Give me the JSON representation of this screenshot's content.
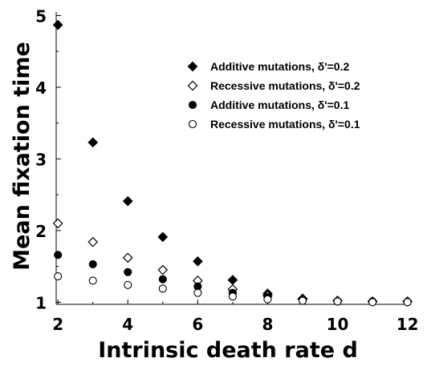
{
  "chart_data": {
    "type": "scatter",
    "xlabel": "Intrinsic death rate d",
    "ylabel": "Mean fixation time",
    "xlim": [
      1.95,
      12.1
    ],
    "ylim": [
      0.97,
      5.05
    ],
    "x_ticks": [
      "2",
      "4",
      "6",
      "8",
      "10",
      "12"
    ],
    "y_ticks": [
      "1",
      "2",
      "3",
      "4",
      "5"
    ],
    "grid": false,
    "legend_position": "top-right",
    "series": [
      {
        "name": "Additive mutations, δ'=0.2",
        "marker": "filled-diamond",
        "x": [
          2,
          3,
          4,
          5,
          6,
          7,
          8,
          9,
          10,
          11,
          12
        ],
        "y": [
          4.87,
          3.23,
          2.41,
          1.91,
          1.57,
          1.31,
          1.12,
          1.05,
          1.02,
          1.01,
          1.01
        ]
      },
      {
        "name": "Recessive mutations, δ'=0.2",
        "marker": "open-diamond",
        "x": [
          2,
          3,
          4,
          5,
          6,
          7,
          8,
          9,
          10,
          11,
          12
        ],
        "y": [
          2.1,
          1.84,
          1.62,
          1.45,
          1.3,
          1.18,
          1.09,
          1.04,
          1.02,
          1.01,
          1.01
        ]
      },
      {
        "name": "Additive mutations, δ'=0.1",
        "marker": "filled-circle",
        "x": [
          2,
          3,
          4,
          5,
          6,
          7,
          8,
          9,
          10,
          11,
          12
        ],
        "y": [
          1.66,
          1.53,
          1.42,
          1.32,
          1.22,
          1.13,
          1.07,
          1.03,
          1.01,
          1.01,
          1.0
        ]
      },
      {
        "name": "Recessive mutations, δ'=0.1",
        "marker": "open-circle",
        "x": [
          2,
          3,
          4,
          5,
          6,
          7,
          8,
          9,
          10,
          11,
          12
        ],
        "y": [
          1.36,
          1.3,
          1.24,
          1.19,
          1.13,
          1.08,
          1.04,
          1.02,
          1.01,
          1.0,
          1.0
        ]
      }
    ]
  }
}
